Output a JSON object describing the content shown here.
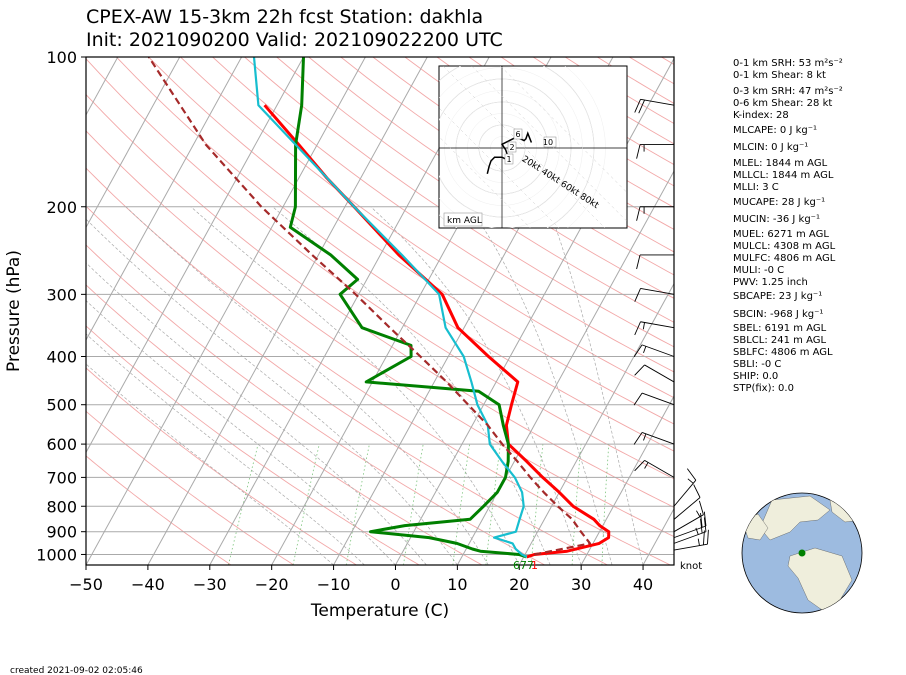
{
  "title_line1": "CPEX-AW 15-3km  22h fcst  Station: dakhla",
  "title_line2": "Init: 2021090200  Valid: 202109022200 UTC",
  "footer": "created 2021-09-02 02:05:46",
  "knot_label": "knot",
  "hodograph_label": "km AGL",
  "hodograph_ring_labels": [
    "20kt",
    "40kt",
    "60kt",
    "80kt"
  ],
  "hodograph_height_labels": [
    "1",
    "2",
    "6",
    "10"
  ],
  "lcl_labels": {
    "dewpoint": "677",
    "temp": "1"
  },
  "indices": [
    "0-1 km SRH: 53 m²s⁻²",
    "0-1 km Shear: 8 kt",
    "0-3 km SRH: 47 m²s⁻²",
    "0-6 km Shear: 28 kt",
    "K-index: 28",
    "MLCAPE: 0 J kg⁻¹",
    "MLCIN: 0 J kg⁻¹",
    "MLEL: 1844 m AGL",
    "MLLCL: 1844 m AGL",
    "MLLI: 3 C",
    "MUCAPE: 28 J kg⁻¹",
    "MUCIN: -36 J kg⁻¹",
    "MUEL: 6271 m AGL",
    "MULCL: 4308 m AGL",
    "MULFC: 4806 m AGL",
    "MULI: -0 C",
    "PWV: 1.25 inch",
    "SBCAPE: 23 J kg⁻¹",
    "SBCIN: -968 J kg⁻¹",
    "SBEL: 6191 m AGL",
    "SBLCL: 241 m AGL",
    "SBLFC: 4806 m AGL",
    "SBLI: -0 C",
    "SHIP: 0.0",
    "STP(fix): 0.0"
  ],
  "colors": {
    "temperature": "#ff0000",
    "dewpoint": "#008000",
    "wetbulb": "#17becf",
    "parcel": "#a52a2a"
  },
  "chart_data": {
    "type": "line",
    "subtype": "skew-T log-p",
    "xlabel": "Temperature (C)",
    "ylabel": "Pressure (hPa)",
    "xlim": [
      -50,
      45
    ],
    "ylim_pressure": [
      1050,
      100
    ],
    "x_ticks": [
      -50,
      -40,
      -30,
      -20,
      -10,
      0,
      10,
      20,
      30,
      40
    ],
    "x_tick_labels": [
      "−50",
      "−40",
      "−30",
      "−20",
      "−10",
      "0",
      "10",
      "20",
      "30",
      "40"
    ],
    "p_ticks": [
      1000,
      900,
      800,
      700,
      600,
      500,
      400,
      300,
      200,
      100
    ],
    "p_tick_labels": [
      "1000",
      "900",
      "800",
      "700",
      "600",
      "500",
      "400",
      "300",
      "200",
      "100"
    ],
    "series": [
      {
        "key": "temperature",
        "p": [
          1012,
          1000,
          985,
          950,
          925,
          900,
          875,
          850,
          800,
          750,
          700,
          650,
          600,
          550,
          500,
          450,
          400,
          350,
          300,
          250,
          200,
          175,
          150,
          125
        ],
        "t": [
          20.5,
          21.5,
          26.5,
          31,
          32,
          31.5,
          29.5,
          28,
          23.5,
          20,
          16,
          12,
          7.5,
          5.5,
          4.5,
          3.5,
          -3.5,
          -11,
          -16.5,
          -27,
          -38.5,
          -45.5,
          -53,
          -62
        ]
      },
      {
        "key": "dewpoint",
        "p": [
          1012,
          1000,
          985,
          975,
          950,
          925,
          900,
          875,
          850,
          800,
          750,
          700,
          650,
          600,
          550,
          500,
          470,
          450,
          400,
          380,
          350,
          300,
          280,
          250,
          220,
          200,
          150,
          125,
          100
        ],
        "t": [
          20.5,
          19,
          12.5,
          11,
          8,
          3,
          -7,
          -2,
          8,
          9,
          10,
          10,
          9,
          7.5,
          5,
          2.5,
          -2,
          -21,
          -16,
          -17,
          -26.5,
          -33,
          -31.5,
          -38,
          -47,
          -48,
          -53.5,
          -56,
          -60
        ]
      },
      {
        "key": "wetbulb",
        "p": [
          1012,
          1000,
          975,
          950,
          925,
          900,
          850,
          800,
          750,
          700,
          650,
          600,
          550,
          500,
          450,
          400,
          350,
          300,
          250,
          200,
          150,
          125,
          100
        ],
        "t": [
          20.5,
          19.5,
          18,
          17,
          13.5,
          16.5,
          16,
          15.5,
          14,
          11.5,
          8,
          4.5,
          2.5,
          -1,
          -4,
          -7.5,
          -13,
          -17,
          -26.5,
          -38.5,
          -53.5,
          -63,
          -68
        ]
      },
      {
        "key": "parcel",
        "p": [
          1000,
          950,
          900,
          850,
          800,
          750,
          700,
          650,
          600,
          550,
          500,
          450,
          400,
          350,
          300,
          250,
          200,
          150,
          100
        ],
        "t": [
          21.5,
          29.5,
          27,
          24.5,
          21,
          17.5,
          14,
          10.5,
          6.5,
          2.5,
          -2.5,
          -8,
          -14.5,
          -22,
          -30.5,
          -41,
          -53.5,
          -68,
          -85
        ]
      }
    ],
    "wind_barbs_knots": [
      {
        "p": 980,
        "spd": 25,
        "dir": 80
      },
      {
        "p": 950,
        "spd": 25,
        "dir": 70
      },
      {
        "p": 925,
        "spd": 20,
        "dir": 70
      },
      {
        "p": 900,
        "spd": 15,
        "dir": 60
      },
      {
        "p": 850,
        "spd": 10,
        "dir": 50
      },
      {
        "p": 800,
        "spd": 15,
        "dir": 40
      },
      {
        "p": 700,
        "spd": 15,
        "dir": 300
      },
      {
        "p": 600,
        "spd": 15,
        "dir": 290
      },
      {
        "p": 500,
        "spd": 10,
        "dir": 290
      },
      {
        "p": 450,
        "spd": 10,
        "dir": 300
      },
      {
        "p": 400,
        "spd": 15,
        "dir": 290
      },
      {
        "p": 350,
        "spd": 15,
        "dir": 280
      },
      {
        "p": 300,
        "spd": 10,
        "dir": 280
      },
      {
        "p": 250,
        "spd": 10,
        "dir": 270
      },
      {
        "p": 200,
        "spd": 15,
        "dir": 270
      },
      {
        "p": 150,
        "spd": 15,
        "dir": 270
      },
      {
        "p": 125,
        "spd": 20,
        "dir": 280
      }
    ],
    "hodograph": {
      "u": [
        -8,
        -7,
        -6,
        -4,
        0,
        2,
        3,
        2,
        0,
        4,
        8,
        10,
        12,
        13,
        14,
        16
      ],
      "v": [
        -14,
        -10,
        -7,
        -5,
        -5,
        -6,
        -4,
        -1,
        2,
        4,
        6,
        5,
        4,
        5,
        8,
        3
      ]
    }
  }
}
